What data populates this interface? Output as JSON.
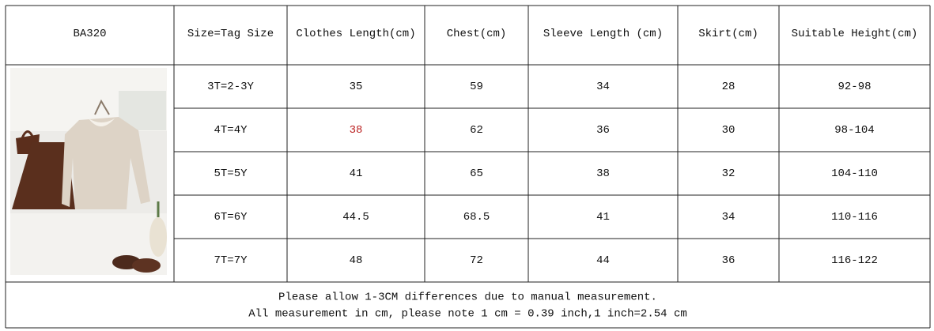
{
  "header": {
    "model": "BA320",
    "columns": [
      "Size=Tag Size",
      "Clothes Length(cm)",
      "Chest(cm)",
      "Sleeve Length (cm)",
      "Skirt(cm)",
      "Suitable Height(cm)"
    ]
  },
  "table": {
    "rows": [
      [
        "3T=2-3Y",
        "35",
        "59",
        "34",
        "28",
        "92-98"
      ],
      [
        "4T=4Y",
        "38",
        "62",
        "36",
        "30",
        "98-104"
      ],
      [
        "5T=5Y",
        "41",
        "65",
        "38",
        "32",
        "104-110"
      ],
      [
        "6T=6Y",
        "44.5",
        "68.5",
        "41",
        "34",
        "110-116"
      ],
      [
        "7T=7Y",
        "48",
        "72",
        "44",
        "36",
        "116-122"
      ]
    ]
  },
  "notes": [
    "Please allow 1-3CM differences due to manual measurement.",
    "All measurement in cm, please note 1 cm = 0.39 inch,1 inch=2.54 cm"
  ]
}
